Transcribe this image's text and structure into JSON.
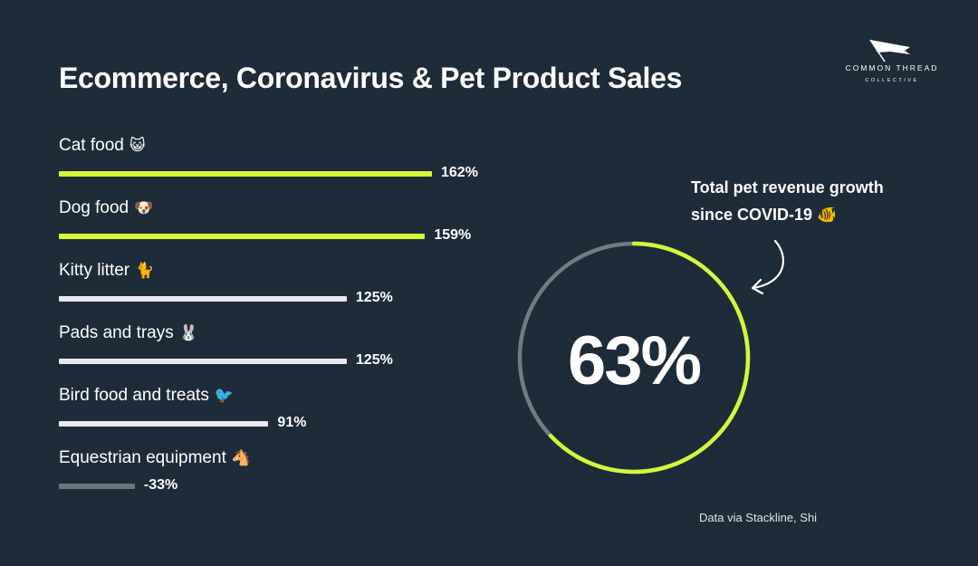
{
  "chart_data": {
    "type": "bar",
    "orientation": "horizontal",
    "title": "Ecommerce, Coronavirus & Pet Product Sales",
    "unit": "%",
    "categories": [
      "Cat food",
      "Dog food",
      "Kitty litter",
      "Pads and trays",
      "Bird food and treats",
      "Equestrian equipment"
    ],
    "emojis": [
      "😺",
      "🐶",
      "🐈",
      "🐰",
      "🐦",
      "🐴"
    ],
    "values": [
      162,
      159,
      125,
      125,
      91,
      -33
    ],
    "value_labels": [
      "162%",
      "159%",
      "125%",
      "125%",
      "91%",
      "-33%"
    ],
    "bar_colors": [
      "#d4f73a",
      "#d4f73a",
      "#ebe7f0",
      "#ebe7f0",
      "#ebe7f0",
      "#6c757f"
    ],
    "grid": false,
    "legend": "none"
  },
  "callout": {
    "line1": "Total pet revenue growth",
    "line2": "since COVID-19",
    "emoji": "🐠"
  },
  "total": {
    "value": 63,
    "label": "63%",
    "ring_color": "#d4f73a",
    "ring_track_color": "#707b86"
  },
  "source": "Data via Stackline, Shi",
  "logo": {
    "line1": "COMMON THREAD",
    "line2": "COLLECTIVE"
  },
  "colors": {
    "background": "#1e2b38",
    "accent": "#d4f73a"
  }
}
